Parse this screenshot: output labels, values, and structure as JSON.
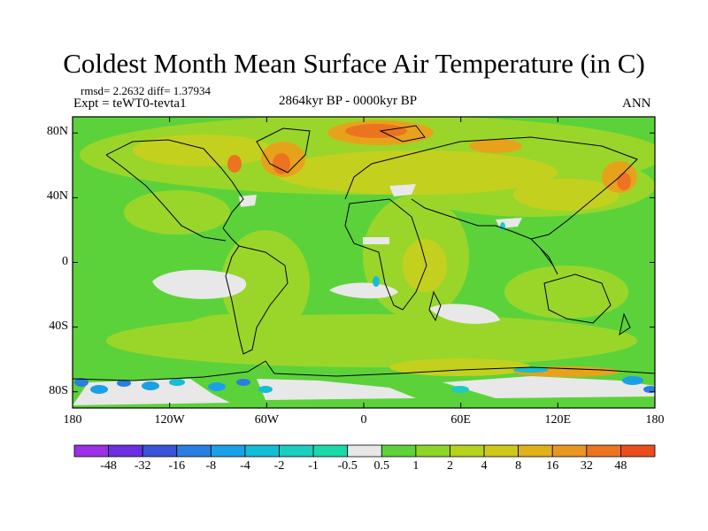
{
  "title": "Coldest Month Mean Surface Air Temperature (in C)",
  "stats": "rmsd= 2.2632  diff= 1.37934",
  "experiment": "Expt = teWT0-tevta1",
  "period": "2864kyr BP - 0000kyr BP",
  "season": "ANN",
  "map": {
    "lat_ticks": [
      {
        "value": 80,
        "label": "80N"
      },
      {
        "value": 40,
        "label": "40N"
      },
      {
        "value": 0,
        "label": "0"
      },
      {
        "value": -40,
        "label": "40S"
      },
      {
        "value": -80,
        "label": "80S"
      }
    ],
    "lon_ticks": [
      {
        "value": -180,
        "label": "180"
      },
      {
        "value": -120,
        "label": "120W"
      },
      {
        "value": -60,
        "label": "60W"
      },
      {
        "value": 0,
        "label": "0"
      },
      {
        "value": 60,
        "label": "60E"
      },
      {
        "value": 120,
        "label": "120E"
      },
      {
        "value": 180,
        "label": "180"
      }
    ],
    "lat_range": [
      -90,
      90
    ],
    "lon_range": [
      -180,
      180
    ]
  },
  "colorbar": {
    "colors": [
      "#9b30e6",
      "#6a2fe0",
      "#3a53d8",
      "#2a7ee0",
      "#1aa0e6",
      "#14bcd6",
      "#1ccdc0",
      "#1ad8a8",
      "#e8e8e8",
      "#5dd23a",
      "#8ed52a",
      "#b4d21e",
      "#cfc81a",
      "#e0b21a",
      "#e99722",
      "#ec7420",
      "#ea4e1c"
    ],
    "labels": [
      "-48",
      "-32",
      "-16",
      "-8",
      "-4",
      "-2",
      "-1",
      "-0.5",
      "0.5",
      "1",
      "2",
      "4",
      "8",
      "16",
      "32",
      "48"
    ]
  }
}
